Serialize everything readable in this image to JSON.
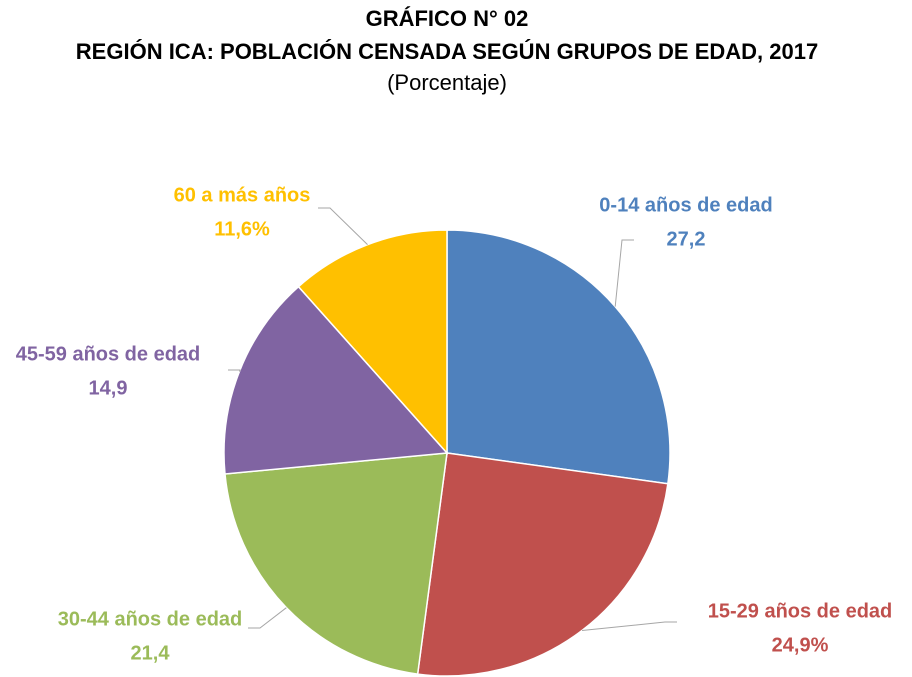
{
  "chart_data": {
    "type": "pie",
    "title": "GRÁFICO N° 02",
    "subtitle": "REGIÓN ICA: POBLACIÓN CENSADA SEGÚN GRUPOS DE EDAD, 2017",
    "unit_label": "(Porcentaje)",
    "categories": [
      "0-14 años de edad",
      "15-29 años de edad",
      "30-44 años de edad",
      "45-59 años de edad",
      "60 a más años"
    ],
    "values": [
      27.2,
      24.9,
      21.4,
      14.9,
      11.6
    ],
    "value_labels": [
      "27,2",
      "24,9%",
      "21,4",
      "14,9",
      "11,6%"
    ],
    "colors": [
      "#4f81bd",
      "#c0504d",
      "#9bbb59",
      "#8064a2",
      "#ffc000"
    ]
  }
}
